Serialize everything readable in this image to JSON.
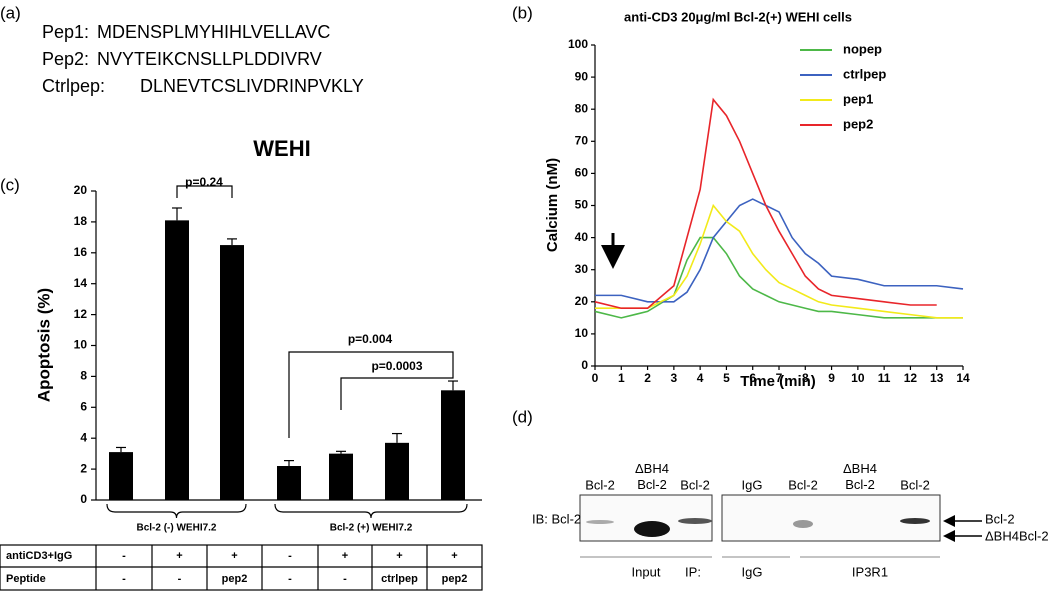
{
  "panel_labels": [
    "(a)",
    "(b)",
    "(c)",
    "(d)"
  ],
  "sequences": [
    {
      "name": "Pep1:",
      "seq": "MDENSPLMYHIHLVELLAVC"
    },
    {
      "name": "Pep2:",
      "seq": "NVYTEIKCNSLLPLDDIVRV"
    },
    {
      "name": "Ctrlpep:",
      "seq": "DLNEVTCSLIVDRINPVKLY"
    }
  ],
  "chart_data": [
    {
      "type": "bar",
      "title": "WEHI",
      "y_label": "Apoptosis (%)",
      "categories": [
        null,
        null,
        null,
        null,
        null,
        null,
        null
      ],
      "values": [
        3.1,
        18.1,
        16.5,
        2.2,
        3.0,
        3.7,
        7.1
      ],
      "errors": [
        0.3,
        0.8,
        0.4,
        0.35,
        0.15,
        0.6,
        0.6
      ],
      "color": "#000000",
      "ylim": [
        0,
        20
      ],
      "yticks": [
        0,
        2,
        4,
        6,
        8,
        10,
        12,
        14,
        16,
        18,
        20
      ],
      "annotations": [
        "p=0.24",
        "p=0.004",
        "p=0.0003"
      ],
      "groups": [
        "Bcl-2 (-) WEHI7.2",
        "Bcl-2 (+) WEHI7.2"
      ],
      "table": {
        "rows": [
          [
            "antiCD3+IgG",
            "-",
            "+",
            "+",
            "-",
            "+",
            "+",
            "+"
          ],
          [
            "Peptide",
            "-",
            "-",
            "pep2",
            "-",
            "-",
            "ctrlpep",
            "pep2"
          ]
        ]
      }
    },
    {
      "type": "line",
      "title": "anti-CD3 20μg/ml Bcl-2(+) WEHI cells",
      "x_label": "Time (min)",
      "y_label": "Calcium (nM)",
      "x": [
        0,
        1,
        2,
        3,
        3.5,
        4,
        4.5,
        5,
        5.5,
        6,
        6.5,
        7,
        7.5,
        8,
        8.5,
        9,
        10,
        11,
        12,
        13,
        14
      ],
      "series": [
        {
          "name": "nopep",
          "color": "#4db848",
          "values": [
            17,
            15,
            17,
            22,
            33,
            40,
            40,
            35,
            28,
            24,
            22,
            20,
            19,
            18,
            17,
            17,
            16,
            15,
            15,
            15,
            15
          ]
        },
        {
          "name": "ctrlpep",
          "color": "#3c62c0",
          "values": [
            22,
            22,
            20,
            20,
            23,
            30,
            40,
            45,
            50,
            52,
            50,
            48,
            40,
            35,
            32,
            28,
            27,
            25,
            25,
            25,
            24
          ]
        },
        {
          "name": "pep1",
          "color": "#f2ea1a",
          "values": [
            18,
            18,
            18,
            22,
            28,
            38,
            50,
            45,
            42,
            35,
            30,
            26,
            24,
            22,
            20,
            19,
            18,
            17,
            16,
            15,
            15
          ]
        },
        {
          "name": "pep2",
          "color": "#e8252a",
          "values": [
            20,
            18,
            18,
            25,
            40,
            55,
            83,
            78,
            70,
            60,
            50,
            42,
            35,
            28,
            24,
            22,
            21,
            20,
            19,
            19,
            null
          ]
        }
      ],
      "xlim": [
        0,
        14
      ],
      "xticks": [
        0,
        1,
        2,
        3,
        4,
        5,
        6,
        7,
        8,
        9,
        10,
        11,
        12,
        13,
        14
      ],
      "ylim": [
        0,
        100
      ],
      "yticks": [
        0,
        10,
        20,
        30,
        40,
        50,
        60,
        70,
        80,
        90,
        100
      ],
      "legend": "top-right"
    }
  ],
  "blot": {
    "lanes": [
      "Bcl-2",
      "ΔBH4 Bcl-2",
      "Bcl-2",
      "IgG",
      "Bcl-2",
      "ΔBH4 Bcl-2",
      "Bcl-2"
    ],
    "ib": "IB: Bcl-2",
    "input": "Input",
    "ip": "IP:",
    "ip_igg": "IgG",
    "ip3r1": "IP3R1",
    "markers": [
      "Bcl-2",
      "ΔBH4Bcl-2"
    ]
  }
}
